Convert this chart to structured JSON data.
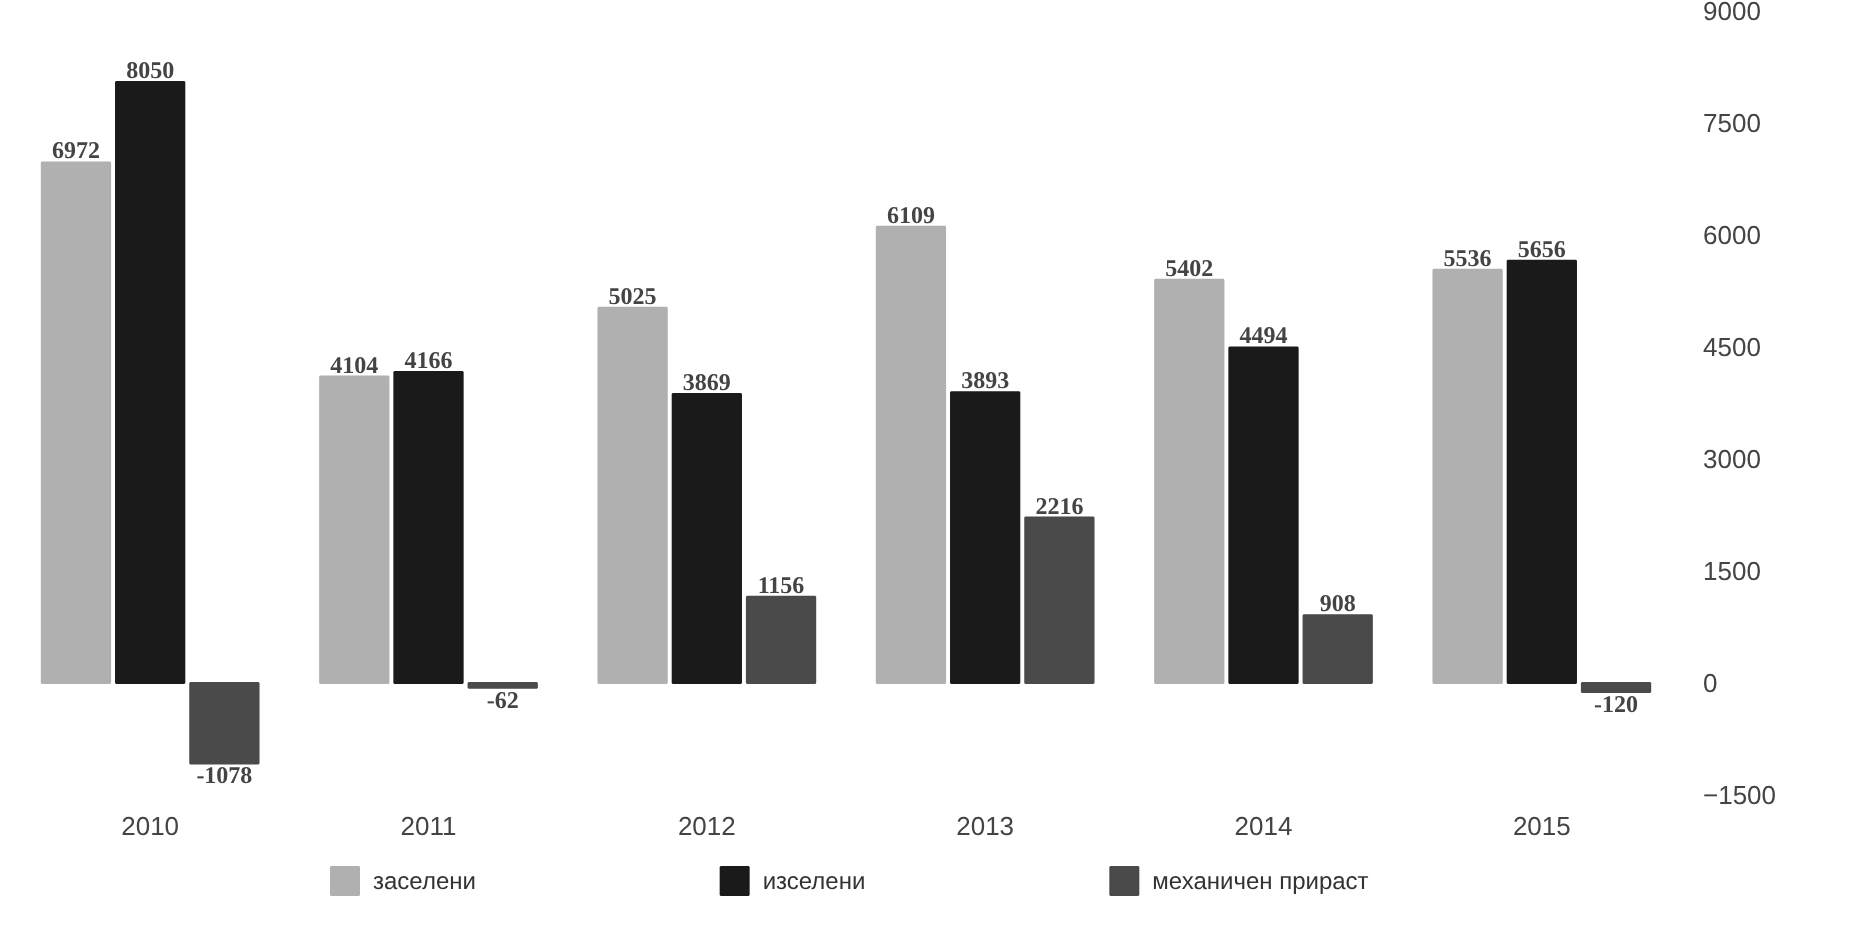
{
  "chart_data": {
    "type": "bar",
    "categories": [
      "2010",
      "2011",
      "2012",
      "2013",
      "2014",
      "2015"
    ],
    "series": [
      {
        "name": "заселени",
        "color": "#b0b0b0",
        "values": [
          6972,
          4104,
          5025,
          6109,
          5402,
          5536
        ]
      },
      {
        "name": "изселени",
        "color": "#1a1a1a",
        "values": [
          8050,
          4166,
          3869,
          3893,
          4494,
          5656
        ]
      },
      {
        "name": "механичен прираст",
        "color": "#4a4a4a",
        "values": [
          -1078,
          -62,
          1156,
          2216,
          908,
          -120
        ]
      }
    ],
    "ylim": [
      -1500,
      9000
    ],
    "yticks": [
      -1500,
      0,
      1500,
      3000,
      4500,
      6000,
      7500,
      9000
    ],
    "data_labels": true,
    "grid": false,
    "legend": "bottom"
  }
}
